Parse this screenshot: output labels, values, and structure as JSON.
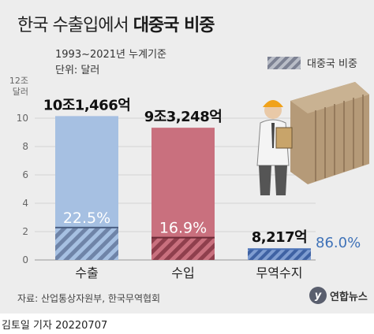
{
  "title_regular": "한국 수출입에서",
  "title_bold": "대중국 비중",
  "subtitle_period": "1993~2021년 누계기준",
  "subtitle_unit": "단위: 달러",
  "legend_label": "대중국 비중",
  "source": "자료: 산업통상자원부, 한국무역협회",
  "logo_text": "연합뉴스",
  "credit_name": "김토일 기자",
  "credit_date": "20220707",
  "colors": {
    "background": "#ededed",
    "export_bar": "#a6c0e2",
    "export_china": "#6f84a8",
    "import_bar": "#c9707e",
    "import_china": "#8f3f4d",
    "trade_bar": "#4d74b8",
    "share_label_trade": "#3f72b8"
  },
  "chart_data": {
    "type": "bar",
    "unit_label": "12조 달러",
    "ylim": [
      0,
      12
    ],
    "yticks": [
      0,
      2,
      4,
      6,
      8,
      10
    ],
    "categories": [
      "수출",
      "수입",
      "무역수지"
    ],
    "values": [
      10.1466,
      9.3248,
      0.8217
    ],
    "value_labels": [
      "10조1,466억",
      "9조3,248억",
      "8,217억"
    ],
    "china_share_pct": [
      22.5,
      16.9,
      86.0
    ],
    "china_share_labels": [
      "22.5%",
      "16.9%",
      "86.0%"
    ]
  }
}
